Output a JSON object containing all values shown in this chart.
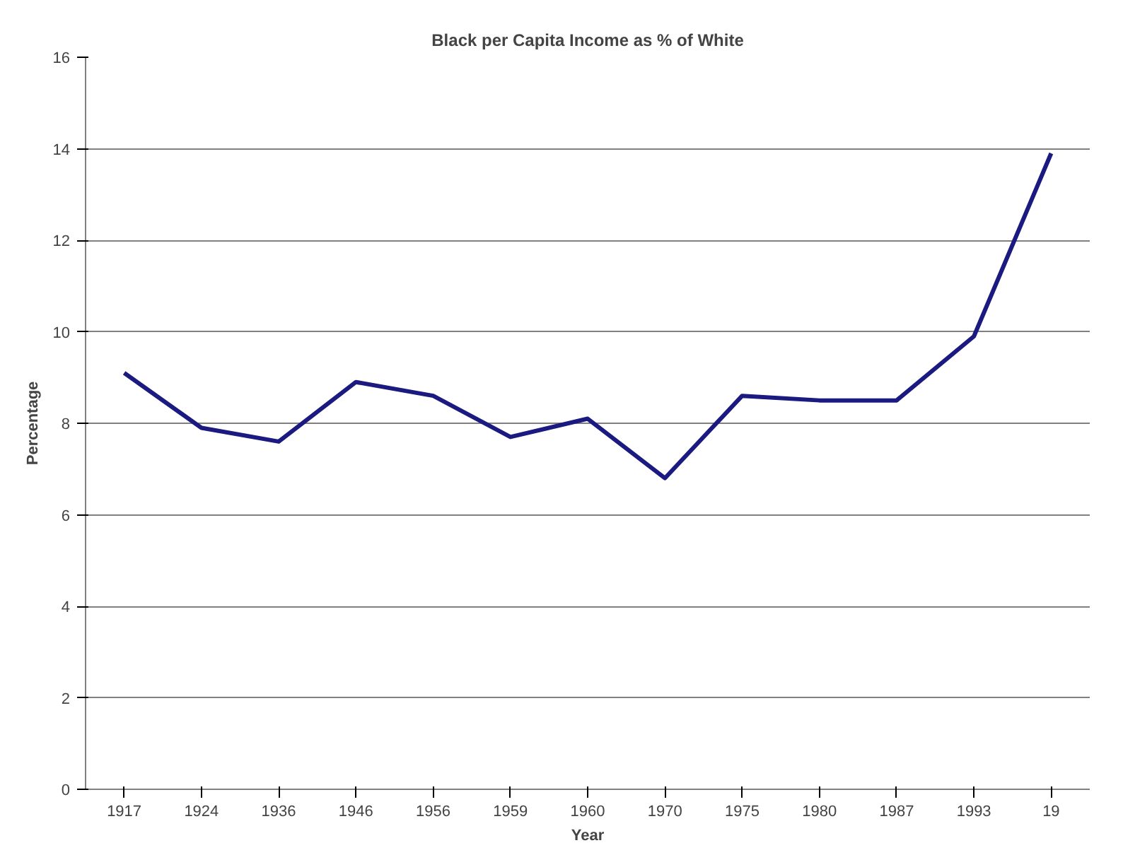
{
  "chart_data": {
    "type": "line",
    "title": "Black per Capita Income as % of White",
    "xlabel": "Year",
    "ylabel": "Percentage",
    "categories": [
      "1917",
      "1924",
      "1936",
      "1946",
      "1956",
      "1959",
      "1960",
      "1970",
      "1975",
      "1980",
      "1987",
      "1993",
      "19"
    ],
    "series": [
      {
        "color": "#1a1a80",
        "values": [
          9.1,
          7.9,
          7.6,
          8.9,
          8.6,
          7.7,
          8.1,
          6.8,
          8.6,
          8.5,
          8.5,
          9.9,
          13.9
        ]
      }
    ],
    "ylim": [
      0,
      16
    ],
    "yticks": [
      0,
      2,
      4,
      6,
      8,
      10,
      12,
      14,
      16
    ],
    "grid": "y",
    "marker": "none",
    "line_style": "solid"
  }
}
